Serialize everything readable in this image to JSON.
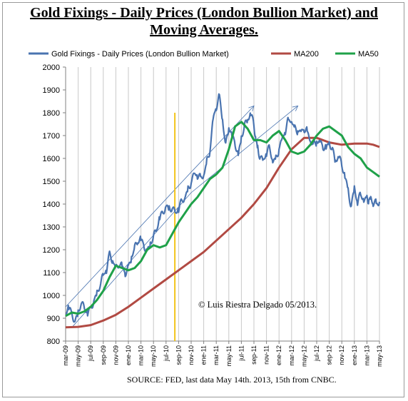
{
  "title": "Gold Fixings - Daily Prices (London Bullion Market) and Moving Averages.",
  "copyright": "© Luis Riestra Delgado 05/2013.",
  "source": "SOURCE: FED, last data May 14th. 2013, 15th from CNBC.",
  "colors": {
    "daily": "#4a74b0",
    "ma200": "#b14a43",
    "ma50": "#1fa149",
    "marker": "#f2c41a",
    "trend": "#4a74b0"
  },
  "chart_data": {
    "type": "line",
    "ylim": [
      800,
      2000
    ],
    "yticks": [
      800,
      900,
      1000,
      1100,
      1200,
      1300,
      1400,
      1500,
      1600,
      1700,
      1800,
      1900,
      2000
    ],
    "legend_position": "top",
    "grid": "vertical",
    "x_months": 50,
    "xtick_labels": [
      "mar-09",
      "may-09",
      "jul-09",
      "sep-09",
      "nov-09",
      "ene-10",
      "mar-10",
      "may-10",
      "jul-10",
      "sep-10",
      "nov-10",
      "ene-11",
      "mar-11",
      "may-11",
      "jul-11",
      "sep-11",
      "nov-11",
      "ene-12",
      "mar-12",
      "may-12",
      "jul-12",
      "sep-12",
      "nov-12",
      "ene-13",
      "mar-13",
      "may-13"
    ],
    "series": [
      {
        "name": "Gold Fixings - Daily Prices (London Bullion Market)",
        "x_month_index": [
          0,
          0.5,
          1,
          1.5,
          2,
          2.5,
          3,
          3.5,
          4,
          4.5,
          5,
          5.5,
          6,
          6.5,
          7,
          7.5,
          8,
          8.5,
          9,
          9.5,
          10,
          10.5,
          11,
          11.5,
          12,
          12.5,
          13,
          13.5,
          14,
          14.5,
          15,
          15.5,
          16,
          16.5,
          17,
          17.5,
          18,
          18.5,
          19,
          19.5,
          20,
          20.5,
          21,
          21.5,
          22,
          22.5,
          23,
          23.5,
          24,
          24.5,
          25,
          25.5,
          26,
          26.5,
          27,
          27.5,
          28,
          28.5,
          29,
          29.5,
          30,
          30.3,
          30.6,
          31,
          31.5,
          32,
          32.5,
          33,
          33.5,
          34,
          34.5,
          35,
          35.5,
          36,
          36.5,
          37,
          37.5,
          38,
          38.5,
          39,
          39.5,
          40,
          40.5,
          41,
          41.5,
          42,
          42.5,
          43,
          43.5,
          44,
          44.5,
          45,
          45.5,
          46,
          46.5,
          47,
          47.5,
          48,
          48.3,
          48.6,
          49,
          49.5,
          50
        ],
        "values": [
          920,
          950,
          930,
          890,
          920,
          960,
          935,
          930,
          950,
          985,
          1000,
          1040,
          1080,
          1120,
          1190,
          1160,
          1110,
          1130,
          1120,
          1105,
          1130,
          1175,
          1200,
          1230,
          1240,
          1225,
          1200,
          1230,
          1250,
          1280,
          1340,
          1370,
          1400,
          1380,
          1375,
          1350,
          1380,
          1420,
          1440,
          1460,
          1490,
          1520,
          1530,
          1520,
          1540,
          1580,
          1630,
          1760,
          1830,
          1880,
          1780,
          1650,
          1730,
          1690,
          1670,
          1620,
          1700,
          1740,
          1760,
          1790,
          1750,
          1690,
          1650,
          1600,
          1580,
          1620,
          1650,
          1600,
          1600,
          1640,
          1670,
          1720,
          1770,
          1780,
          1730,
          1720,
          1700,
          1730,
          1720,
          1690,
          1660,
          1670,
          1660,
          1650,
          1650,
          1680,
          1640,
          1580,
          1600,
          1570,
          1530,
          1470,
          1390,
          1460,
          1400,
          1440,
          1430,
          1430,
          1420,
          1410,
          1400,
          1400,
          1410
        ],
        "color": "#4a74b0"
      },
      {
        "name": "MA200",
        "x_month_index": [
          0,
          2,
          4,
          6,
          8,
          10,
          12,
          14,
          16,
          18,
          20,
          22,
          24,
          26,
          28,
          30,
          32,
          34,
          36,
          38,
          40,
          42,
          44,
          46,
          48,
          49,
          50
        ],
        "values": [
          860,
          862,
          870,
          890,
          915,
          950,
          990,
          1030,
          1070,
          1110,
          1150,
          1190,
          1240,
          1290,
          1340,
          1400,
          1470,
          1560,
          1640,
          1690,
          1690,
          1670,
          1660,
          1665,
          1665,
          1660,
          1650
        ],
        "color": "#b14a43"
      },
      {
        "name": "MA50",
        "x_month_index": [
          0,
          1,
          2,
          3,
          4,
          5,
          6,
          7,
          8,
          9,
          10,
          11,
          12,
          13,
          14,
          15,
          16,
          17,
          18,
          19,
          20,
          21,
          22,
          23,
          24,
          25,
          26,
          27,
          28,
          29,
          30,
          31,
          32,
          33,
          34,
          35,
          36,
          37,
          38,
          39,
          40,
          41,
          42,
          43,
          44,
          45,
          46,
          47,
          48,
          49,
          50
        ],
        "values": [
          910,
          925,
          920,
          930,
          950,
          980,
          1020,
          1080,
          1130,
          1120,
          1110,
          1120,
          1150,
          1200,
          1220,
          1210,
          1220,
          1270,
          1320,
          1360,
          1400,
          1430,
          1470,
          1510,
          1530,
          1560,
          1640,
          1740,
          1760,
          1730,
          1680,
          1680,
          1670,
          1700,
          1720,
          1680,
          1630,
          1620,
          1630,
          1660,
          1700,
          1730,
          1740,
          1720,
          1700,
          1650,
          1620,
          1600,
          1560,
          1540,
          1520
        ],
        "color": "#1fa149"
      }
    ],
    "trendlines": [
      {
        "from": [
          0,
          950
        ],
        "to": [
          20,
          1540
        ]
      },
      {
        "from": [
          20,
          1540
        ],
        "to": [
          30,
          1830
        ],
        "arrow": true
      },
      {
        "from": [
          1,
          860
        ],
        "to": [
          20,
          1450
        ]
      },
      {
        "from": [
          20,
          1450
        ],
        "to": [
          37,
          1830
        ],
        "arrow": true
      }
    ],
    "marker": {
      "x_month_index": 17.4,
      "from": 800,
      "to": 1800
    }
  }
}
